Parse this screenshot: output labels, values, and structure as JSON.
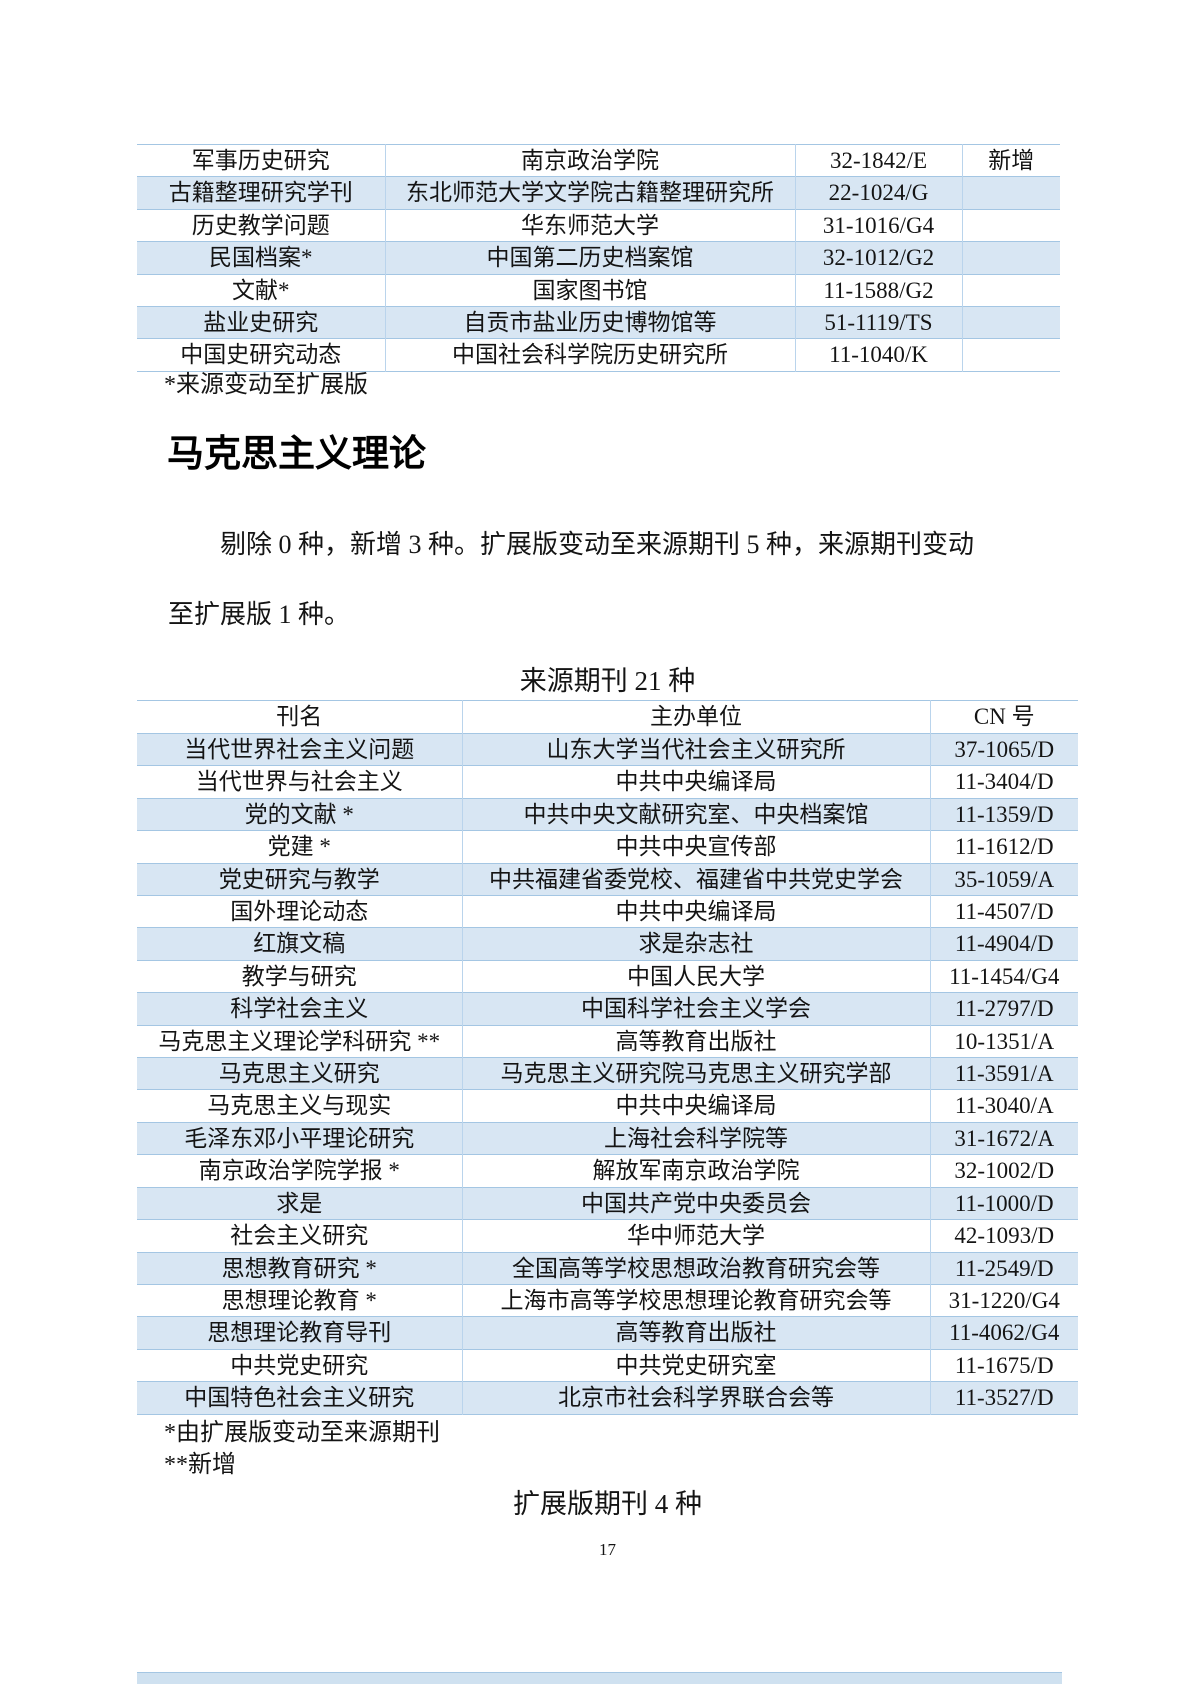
{
  "page": {
    "number": "17",
    "colors": {
      "row_highlight_blue": "#d8e6f3",
      "table_line_blue": "#a4c6e3",
      "next_table_strip_blue": "#cfe1f0"
    }
  },
  "top_table": {
    "rows": [
      {
        "title": "军事历史研究",
        "org": "南京政治学院",
        "cn": "32-1842/E",
        "note": "新增"
      },
      {
        "title": "古籍整理研究学刊",
        "org": "东北师范大学文学院古籍整理研究所",
        "cn": "22-1024/G",
        "note": ""
      },
      {
        "title": "历史教学问题",
        "org": "华东师范大学",
        "cn": "31-1016/G4",
        "note": ""
      },
      {
        "title": "民国档案*",
        "org": "中国第二历史档案馆",
        "cn": "32-1012/G2",
        "note": ""
      },
      {
        "title": "文献*",
        "org": "国家图书馆",
        "cn": "11-1588/G2",
        "note": ""
      },
      {
        "title": "盐业史研究",
        "org": "自贡市盐业历史博物馆等",
        "cn": "51-1119/TS",
        "note": ""
      },
      {
        "title": "中国史研究动态",
        "org": "中国社会科学院历史研究所",
        "cn": "11-1040/K",
        "note": ""
      }
    ],
    "footnote": "*来源变动至扩展版"
  },
  "section": {
    "heading": "马克思主义理论",
    "paragraph_lines": [
      "剔除 0 种，新增 3 种。扩展版变动至来源期刊 5 种，来源期刊变动",
      "至扩展版 1 种。"
    ],
    "source_caption": "来源期刊 21 种"
  },
  "main_table": {
    "headers": [
      "刊名",
      "主办单位",
      "CN 号"
    ],
    "rows": [
      {
        "title": "当代世界社会主义问题",
        "org": "山东大学当代社会主义研究所",
        "cn": "37-1065/D"
      },
      {
        "title": "当代世界与社会主义",
        "org": "中共中央编译局",
        "cn": "11-3404/D"
      },
      {
        "title": "党的文献 *",
        "org": "中共中央文献研究室、中央档案馆",
        "cn": "11-1359/D"
      },
      {
        "title": "党建 *",
        "org": "中共中央宣传部",
        "cn": "11-1612/D"
      },
      {
        "title": "党史研究与教学",
        "org": "中共福建省委党校、福建省中共党史学会",
        "cn": "35-1059/A"
      },
      {
        "title": "国外理论动态",
        "org": "中共中央编译局",
        "cn": "11-4507/D"
      },
      {
        "title": "红旗文稿",
        "org": "求是杂志社",
        "cn": "11-4904/D"
      },
      {
        "title": "教学与研究",
        "org": "中国人民大学",
        "cn": "11-1454/G4"
      },
      {
        "title": "科学社会主义",
        "org": "中国科学社会主义学会",
        "cn": "11-2797/D"
      },
      {
        "title": "马克思主义理论学科研究 **",
        "org": "高等教育出版社",
        "cn": "10-1351/A"
      },
      {
        "title": "马克思主义研究",
        "org": "马克思主义研究院马克思主义研究学部",
        "cn": "11-3591/A"
      },
      {
        "title": "马克思主义与现实",
        "org": "中共中央编译局",
        "cn": "11-3040/A"
      },
      {
        "title": "毛泽东邓小平理论研究",
        "org": "上海社会科学院等",
        "cn": "31-1672/A"
      },
      {
        "title": "南京政治学院学报 *",
        "org": "解放军南京政治学院",
        "cn": "32-1002/D"
      },
      {
        "title": "求是",
        "org": "中国共产党中央委员会",
        "cn": "11-1000/D"
      },
      {
        "title": "社会主义研究",
        "org": "华中师范大学",
        "cn": "42-1093/D"
      },
      {
        "title": "思想教育研究 *",
        "org": "全国高等学校思想政治教育研究会等",
        "cn": "11-2549/D"
      },
      {
        "title": "思想理论教育 *",
        "org": "上海市高等学校思想理论教育研究会等",
        "cn": "31-1220/G4"
      },
      {
        "title": "思想理论教育导刊",
        "org": "高等教育出版社",
        "cn": "11-4062/G4"
      },
      {
        "title": "中共党史研究",
        "org": "中共党史研究室",
        "cn": "11-1675/D"
      },
      {
        "title": "中国特色社会主义研究",
        "org": "北京市社会科学界联合会等",
        "cn": "11-3527/D"
      }
    ],
    "footnotes": [
      "*由扩展版变动至来源期刊",
      "**新增"
    ]
  },
  "expanded_caption": "扩展版期刊 4 种"
}
